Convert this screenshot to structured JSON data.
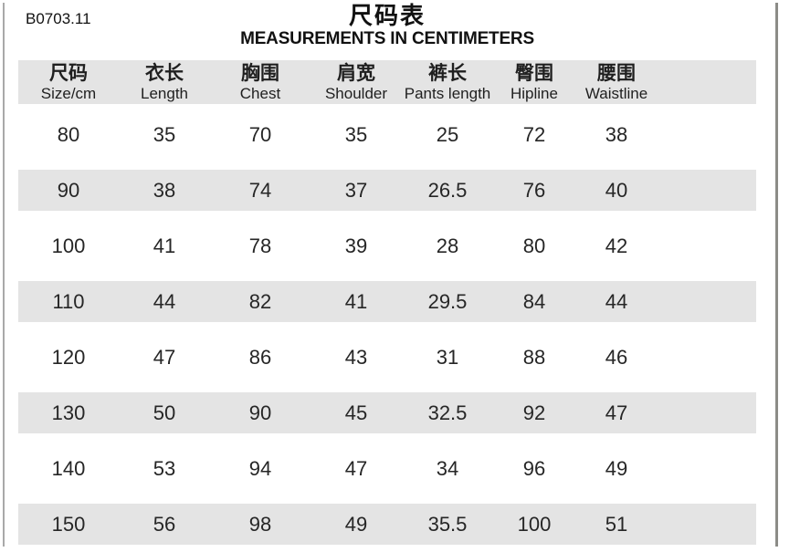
{
  "code": "B0703.11",
  "title": "尺码表",
  "subtitle": "MEASUREMENTS IN CENTIMETERS",
  "table": {
    "columns": [
      {
        "zh": "尺码",
        "en": "Size/cm"
      },
      {
        "zh": "衣长",
        "en": "Length"
      },
      {
        "zh": "胸围",
        "en": "Chest"
      },
      {
        "zh": "肩宽",
        "en": "Shoulder"
      },
      {
        "zh": "裤长",
        "en": "Pants length"
      },
      {
        "zh": "臀围",
        "en": "Hipline"
      },
      {
        "zh": "腰围",
        "en": "Waistline"
      }
    ],
    "rows": [
      [
        "80",
        "35",
        "70",
        "35",
        "25",
        "72",
        "38"
      ],
      [
        "90",
        "38",
        "74",
        "37",
        "26.5",
        "76",
        "40"
      ],
      [
        "100",
        "41",
        "78",
        "39",
        "28",
        "80",
        "42"
      ],
      [
        "110",
        "44",
        "82",
        "41",
        "29.5",
        "84",
        "44"
      ],
      [
        "120",
        "47",
        "86",
        "43",
        "31",
        "88",
        "46"
      ],
      [
        "130",
        "50",
        "90",
        "45",
        "32.5",
        "92",
        "47"
      ],
      [
        "140",
        "53",
        "94",
        "47",
        "34",
        "96",
        "49"
      ],
      [
        "150",
        "56",
        "98",
        "49",
        "35.5",
        "100",
        "51"
      ]
    ]
  },
  "colors": {
    "stripe": "#e4e4e4",
    "header_band": "#e4e4e4",
    "text": "#1f1f1f",
    "border_left": "#a9a9a9",
    "border_right": "#8c8c87",
    "background": "#ffffff"
  }
}
